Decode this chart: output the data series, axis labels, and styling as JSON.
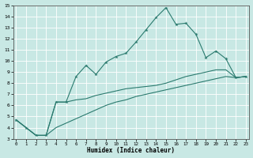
{
  "xlabel": "Humidex (Indice chaleur)",
  "xlim": [
    0,
    23
  ],
  "ylim": [
    3,
    15
  ],
  "xticks": [
    0,
    1,
    2,
    3,
    4,
    5,
    6,
    7,
    8,
    9,
    10,
    11,
    12,
    13,
    14,
    15,
    16,
    17,
    18,
    19,
    20,
    21,
    22,
    23
  ],
  "yticks": [
    3,
    4,
    5,
    6,
    7,
    8,
    9,
    10,
    11,
    12,
    13,
    14,
    15
  ],
  "bg_color": "#c8e8e4",
  "line_color": "#2a7a6e",
  "grid_minor_color": "#b8d8d4",
  "grid_major_color": "#e8f8f4",
  "curve1_x": [
    0,
    1,
    2,
    3,
    4,
    5,
    6,
    7,
    8,
    9,
    10,
    11,
    12,
    13,
    14,
    15,
    16,
    17,
    18,
    19,
    20,
    21,
    22,
    23
  ],
  "curve1_y": [
    4.7,
    4.0,
    3.3,
    3.3,
    6.3,
    6.3,
    8.6,
    9.6,
    8.8,
    9.9,
    10.4,
    10.7,
    11.7,
    12.8,
    13.9,
    14.8,
    13.3,
    13.4,
    12.4,
    10.3,
    10.9,
    10.2,
    8.5,
    8.6
  ],
  "curve2_x": [
    0,
    1,
    2,
    3,
    4,
    5,
    6,
    7,
    8,
    9,
    10,
    11,
    12,
    13,
    14,
    15,
    16,
    17,
    18,
    19,
    20,
    21,
    22,
    23
  ],
  "curve2_y": [
    4.7,
    4.0,
    3.3,
    3.3,
    6.3,
    6.3,
    6.5,
    6.6,
    6.9,
    7.1,
    7.3,
    7.5,
    7.6,
    7.7,
    7.8,
    8.0,
    8.3,
    8.6,
    8.8,
    9.0,
    9.2,
    9.2,
    8.5,
    8.6
  ],
  "curve3_x": [
    0,
    1,
    2,
    3,
    4,
    5,
    6,
    7,
    8,
    9,
    10,
    11,
    12,
    13,
    14,
    15,
    16,
    17,
    18,
    19,
    20,
    21,
    22,
    23
  ],
  "curve3_y": [
    4.7,
    4.0,
    3.3,
    3.3,
    4.0,
    4.4,
    4.8,
    5.2,
    5.6,
    6.0,
    6.3,
    6.5,
    6.8,
    7.0,
    7.2,
    7.4,
    7.6,
    7.8,
    8.0,
    8.2,
    8.4,
    8.6,
    8.5,
    8.6
  ]
}
